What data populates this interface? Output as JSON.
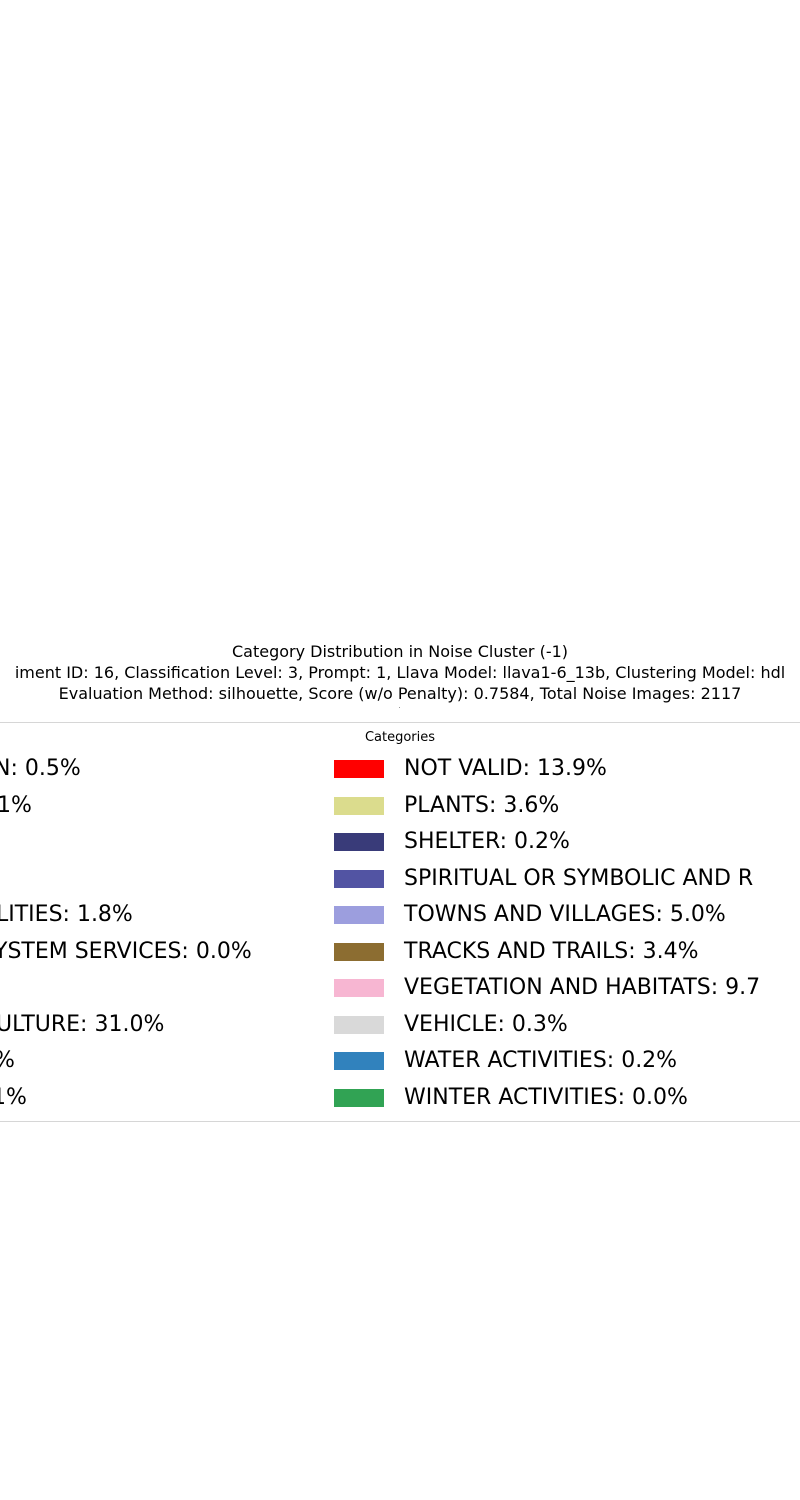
{
  "chart_data": {
    "type": "pie",
    "title": "Category Distribution in Noise Cluster (-1)",
    "subtitle_lines": [
      "iment ID: 16, Classification Level: 3, Prompt: 1, Llava Model: llava1-6_13b, Clustering Model: hdl",
      "Evaluation Method: silhouette, Score (w/o Penalty): 0.7584, Total Noise Images: 2117"
    ],
    "legend_title": "Categories",
    "legend_placement": "center",
    "left_column_entries": [
      {
        "label": "N: 0.5%"
      },
      {
        "label": ".1%"
      },
      {
        "label": ""
      },
      {
        "label": ""
      },
      {
        "label": "LITIES: 1.8%"
      },
      {
        "label": "YSTEM SERVICES: 0.0%"
      },
      {
        "label": ""
      },
      {
        "label": "ULTURE: 31.0%"
      },
      {
        "label": "%"
      },
      {
        "label": "1%"
      }
    ],
    "right_column_entries": [
      {
        "label": "NOT VALID: 13.9%",
        "color": "#ff0000"
      },
      {
        "label": "PLANTS: 3.6%",
        "color": "#dbdc8d"
      },
      {
        "label": "SHELTER: 0.2%",
        "color": "#393b79"
      },
      {
        "label": "SPIRITUAL OR SYMBOLIC AND R",
        "color": "#5254a3"
      },
      {
        "label": "TOWNS AND VILLAGES: 5.0%",
        "color": "#9c9ede"
      },
      {
        "label": "TRACKS AND TRAILS: 3.4%",
        "color": "#8c6d31"
      },
      {
        "label": "VEGETATION AND HABITATS: 9.7",
        "color": "#f7b6d2"
      },
      {
        "label": "VEHICLE: 0.3%",
        "color": "#d9d9d9"
      },
      {
        "label": "WATER ACTIVITIES: 0.2%",
        "color": "#3182bd"
      },
      {
        "label": "WINTER ACTIVITIES: 0.0%",
        "color": "#31a354"
      }
    ]
  }
}
